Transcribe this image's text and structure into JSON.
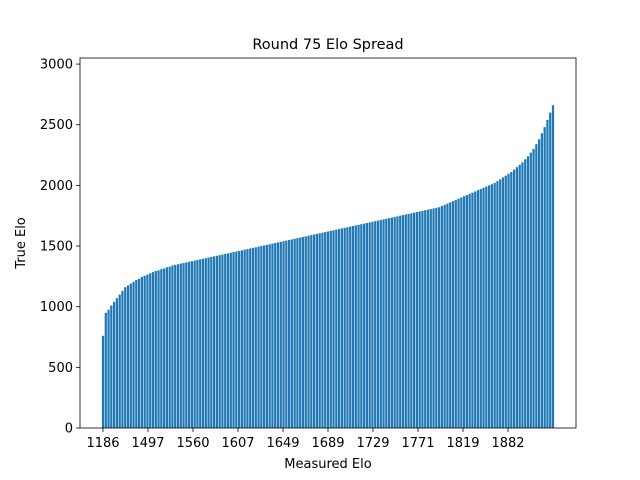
{
  "chart_data": {
    "type": "bar",
    "title": "Round 75 Elo Spread",
    "xlabel": "Measured Elo",
    "ylabel": "True Elo",
    "ylim": [
      0,
      3050
    ],
    "yticks": [
      0,
      500,
      1000,
      1500,
      2000,
      2500,
      3000
    ],
    "xtick_labels": [
      "1186",
      "1497",
      "1560",
      "1607",
      "1649",
      "1689",
      "1729",
      "1771",
      "1819",
      "1882"
    ],
    "bar_color": "#1f77b4",
    "grid": false,
    "values": [
      760,
      950,
      975,
      1010,
      1040,
      1070,
      1100,
      1130,
      1160,
      1175,
      1190,
      1205,
      1220,
      1230,
      1245,
      1255,
      1265,
      1275,
      1285,
      1295,
      1300,
      1310,
      1315,
      1325,
      1330,
      1340,
      1345,
      1350,
      1355,
      1360,
      1365,
      1370,
      1375,
      1380,
      1385,
      1390,
      1395,
      1400,
      1405,
      1410,
      1415,
      1420,
      1425,
      1430,
      1435,
      1440,
      1445,
      1450,
      1455,
      1460,
      1465,
      1470,
      1475,
      1480,
      1485,
      1490,
      1495,
      1500,
      1505,
      1510,
      1515,
      1520,
      1525,
      1530,
      1535,
      1540,
      1545,
      1550,
      1555,
      1560,
      1565,
      1570,
      1575,
      1580,
      1585,
      1590,
      1595,
      1600,
      1605,
      1610,
      1615,
      1620,
      1625,
      1630,
      1635,
      1640,
      1645,
      1650,
      1655,
      1660,
      1665,
      1670,
      1675,
      1680,
      1685,
      1690,
      1695,
      1700,
      1705,
      1710,
      1715,
      1720,
      1725,
      1730,
      1735,
      1740,
      1745,
      1750,
      1755,
      1760,
      1765,
      1770,
      1775,
      1780,
      1785,
      1790,
      1795,
      1800,
      1805,
      1810,
      1815,
      1820,
      1830,
      1840,
      1850,
      1860,
      1870,
      1880,
      1890,
      1900,
      1910,
      1920,
      1930,
      1940,
      1950,
      1960,
      1970,
      1980,
      1990,
      2000,
      2010,
      2020,
      2035,
      2050,
      2065,
      2080,
      2095,
      2110,
      2130,
      2150,
      2170,
      2190,
      2215,
      2240,
      2270,
      2300,
      2340,
      2380,
      2430,
      2480,
      2540,
      2600,
      2660
    ]
  }
}
